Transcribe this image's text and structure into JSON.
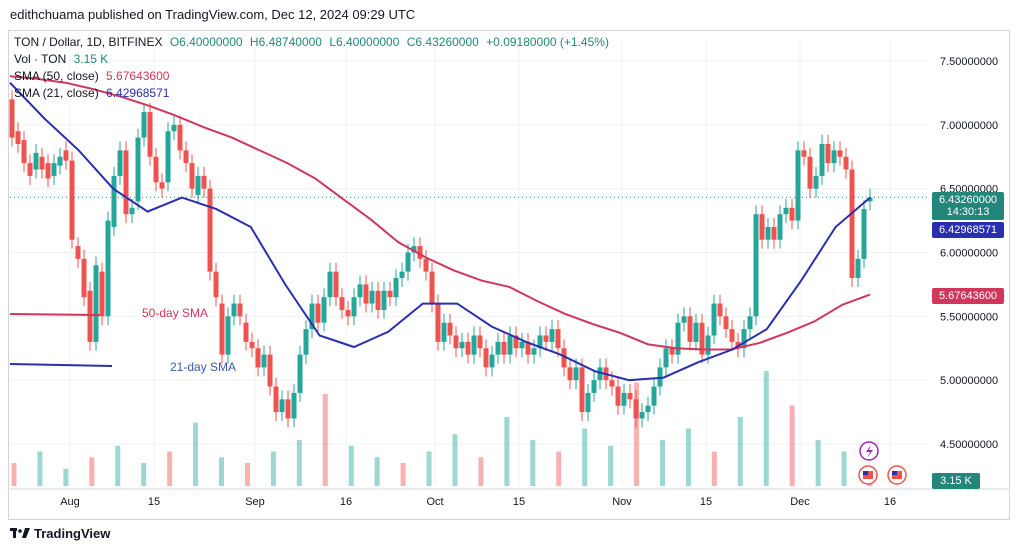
{
  "header": {
    "text": "edithchuama published on TradingView.com, Dec 12, 2024 09:29 UTC"
  },
  "legend": {
    "symbol": "TON / Dollar, 1D, BITFINEX",
    "open": "O6.40000000",
    "high": "H6.48740000",
    "low": "L6.40000000",
    "close": "C6.43260000",
    "change": "+0.09180000 (+1.45%)",
    "vol_label": "Vol · TON",
    "vol_value": "3.15 K",
    "sma50_label": "SMA (50, close)",
    "sma50_value": "5.67643600",
    "sma21_label": "SMA (21, close)",
    "sma21_value": "6.42968571"
  },
  "annotations": {
    "sma50": "50-day SMA",
    "sma21": "21-day SMA"
  },
  "tags": {
    "price": "6.43260000",
    "countdown": "14:30:13",
    "sma21": "6.42968571",
    "sma50": "5.67643600",
    "volume": "3.15 K"
  },
  "footer": {
    "brand": "TradingView"
  },
  "colors": {
    "up": "#26a69a",
    "down": "#ef5350",
    "sma50": "#d1365c",
    "sma21": "#2a2fb0",
    "tag_price": "#22877a"
  },
  "chart_data": {
    "type": "candlestick",
    "y_ticks": [
      "7.50000000",
      "7.00000000",
      "6.50000000",
      "6.00000000",
      "5.50000000",
      "5.00000000",
      "4.50000000"
    ],
    "ylim": [
      4.2,
      7.65
    ],
    "x_ticks": [
      "Aug",
      "15",
      "Sep",
      "16",
      "Oct",
      "15",
      "Nov",
      "15",
      "Dec",
      "16"
    ],
    "sma50": [
      7.38,
      7.36,
      7.33,
      7.28,
      7.22,
      7.15,
      7.07,
      6.98,
      6.9,
      6.8,
      6.7,
      6.58,
      6.42,
      6.26,
      6.08,
      5.96,
      5.86,
      5.78,
      5.73,
      5.62,
      5.52,
      5.44,
      5.37,
      5.28,
      5.25,
      5.24,
      5.24,
      5.29,
      5.37,
      5.46,
      5.59,
      5.67
    ],
    "sma21": [
      7.33,
      7.05,
      6.8,
      6.5,
      6.32,
      6.43,
      6.34,
      6.2,
      5.75,
      5.35,
      5.26,
      5.38,
      5.6,
      5.6,
      5.42,
      5.3,
      5.2,
      5.07,
      5.0,
      5.02,
      5.14,
      5.24,
      5.4,
      5.78,
      6.2,
      6.43
    ],
    "volume": [
      0.2,
      0.3,
      0.15,
      0.25,
      0.35,
      0.2,
      0.3,
      0.55,
      0.25,
      0.2,
      0.3,
      0.4,
      0.8,
      0.35,
      0.25,
      0.2,
      0.3,
      0.45,
      0.25,
      0.6,
      0.4,
      0.3,
      0.5,
      0.35,
      0.9,
      0.4,
      0.5,
      0.3,
      0.6,
      1.0,
      0.7,
      0.4,
      0.3,
      0.15
    ]
  }
}
